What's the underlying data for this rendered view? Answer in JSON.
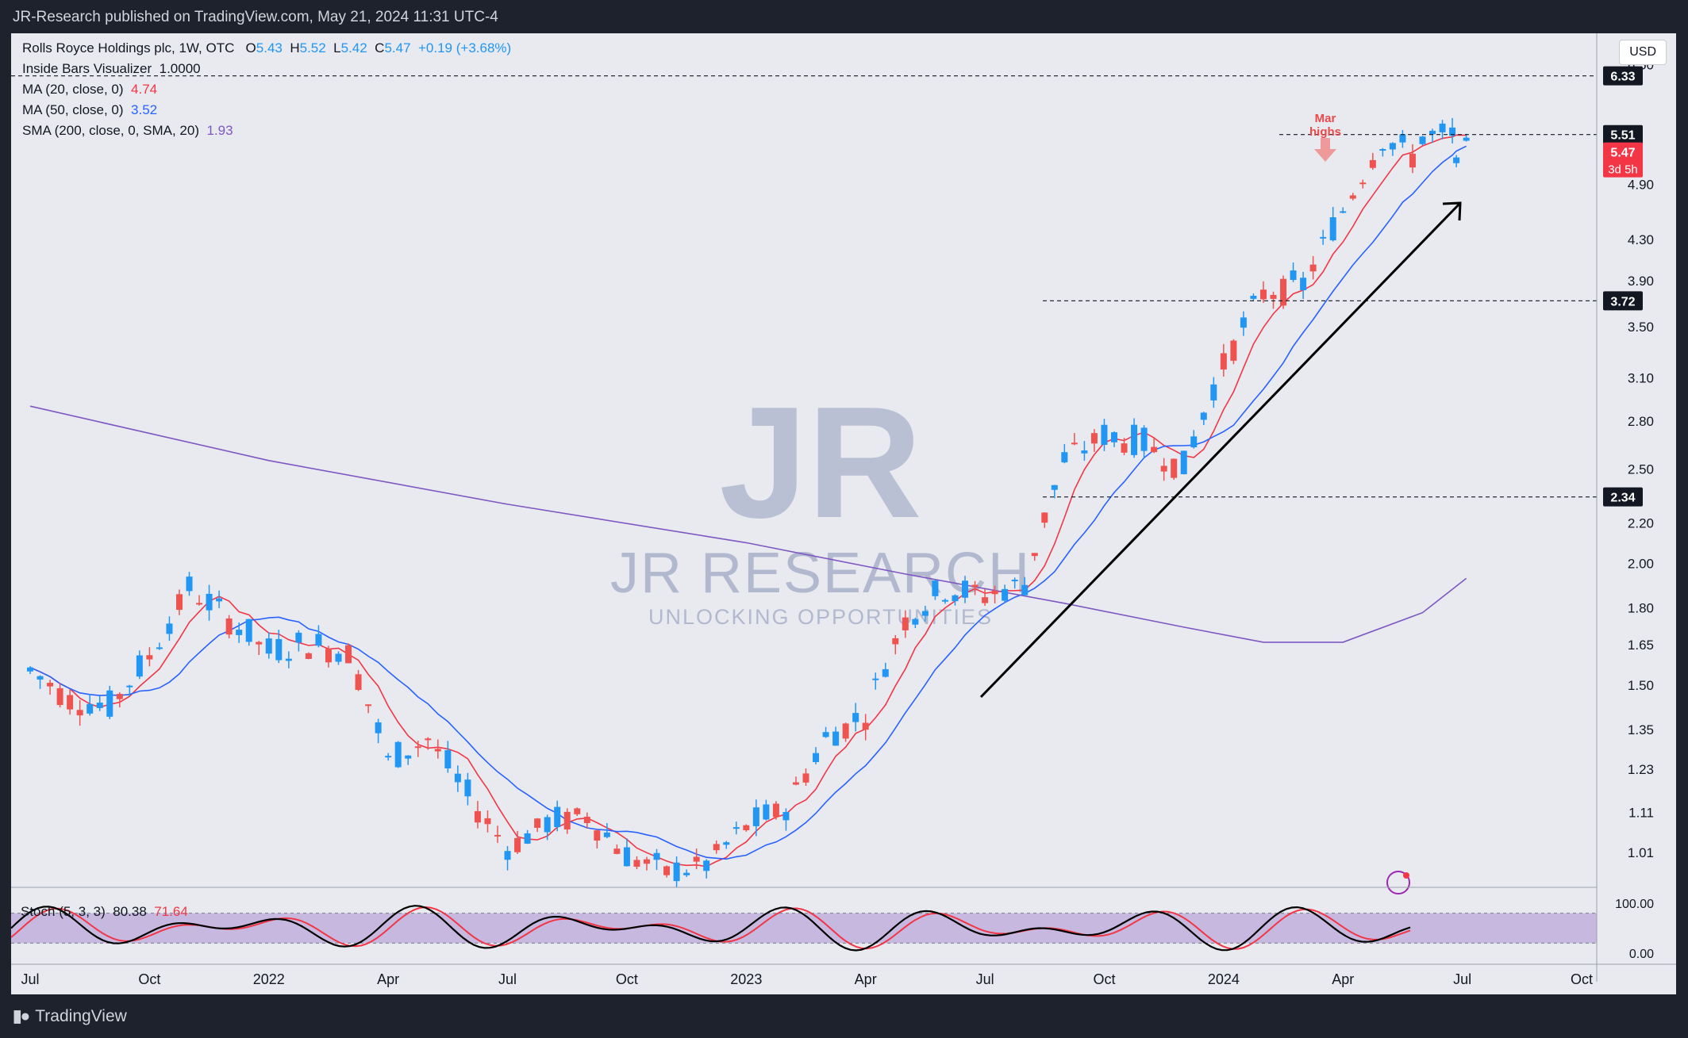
{
  "header": {
    "published": "JR-Research published on TradingView.com, May 21, 2024 11:31 UTC-4"
  },
  "footer": {
    "brand": "TradingView"
  },
  "legend": {
    "symbol": "Rolls Royce Holdings plc, 1W, OTC",
    "o_label": "O",
    "o": "5.43",
    "h_label": "H",
    "h": "5.52",
    "l_label": "L",
    "l": "5.42",
    "c_label": "C",
    "c": "5.47",
    "change": "+0.19 (+3.68%)",
    "inside_bars": "Inside Bars Visualizer",
    "inside_bars_val": "1.0000",
    "ma20": "MA (20, close, 0)",
    "ma20_val": "4.74",
    "ma50": "MA (50, close, 0)",
    "ma50_val": "3.52",
    "sma200": "SMA (200, close, 0, SMA, 20)",
    "sma200_val": "1.93"
  },
  "currency": "USD",
  "stoch": {
    "label": "Stoch (5, 3, 3)",
    "k": "80.38",
    "d": "71.64"
  },
  "annotation": {
    "line1": "Mar",
    "line2": "highs"
  },
  "watermark": {
    "logo": "JR",
    "name": "JR RESEARCH",
    "tagline": "UNLOCKING OPPORTUNITIES"
  },
  "colors": {
    "up": "#2196f3",
    "down": "#ef5350",
    "ma20": "#f23645",
    "ma50": "#2962ff",
    "sma200": "#7e57c2",
    "bg": "#e8eaf0",
    "stoch_band": "#c7b8e0"
  },
  "chart_data": {
    "type": "candlestick",
    "title": "Rolls Royce Holdings plc, 1W, OTC",
    "y_scale": "log",
    "y_ticks": [
      "6.50",
      "4.90",
      "4.30",
      "3.90",
      "3.50",
      "3.10",
      "2.80",
      "2.50",
      "2.20",
      "2.00",
      "1.80",
      "1.65",
      "1.50",
      "1.35",
      "1.23",
      "1.11",
      "1.01"
    ],
    "x_ticks": [
      "Jul",
      "Oct",
      "2022",
      "Apr",
      "Jul",
      "Oct",
      "2023",
      "Apr",
      "Jul",
      "Oct",
      "2024",
      "Apr",
      "Jul",
      "Oct"
    ],
    "price_labels": [
      {
        "value": "6.33",
        "style": "dark"
      },
      {
        "value": "5.51",
        "style": "dark"
      },
      {
        "value": "5.47",
        "sub": "3d 5h",
        "style": "red"
      },
      {
        "value": "3.72",
        "style": "dark"
      },
      {
        "value": "2.34",
        "style": "dark"
      }
    ],
    "levels": [
      6.33,
      5.51,
      3.72,
      2.34
    ],
    "ohlc_weeks_approx": {
      "2021-06": [
        1.55,
        1.57,
        1.48,
        1.5
      ],
      "2021-07": [
        1.45,
        1.48,
        1.22,
        1.28
      ],
      "2021-08": [
        1.42,
        1.62,
        1.4,
        1.58
      ],
      "2021-09": [
        1.6,
        1.98,
        1.55,
        1.95
      ],
      "2021-10": [
        1.88,
        1.98,
        1.78,
        1.82
      ],
      "2021-11": [
        1.75,
        1.8,
        1.57,
        1.62
      ],
      "2021-12": [
        1.62,
        1.72,
        1.42,
        1.6
      ],
      "2022-01": [
        1.65,
        1.68,
        1.58,
        1.63
      ],
      "2022-02": [
        1.62,
        1.65,
        1.43,
        1.5
      ],
      "2022-03": [
        1.25,
        1.55,
        1.17,
        1.4
      ],
      "2022-04": [
        1.32,
        1.38,
        1.15,
        1.2
      ],
      "2022-05": [
        1.15,
        1.18,
        0.98,
        1.05
      ],
      "2022-06": [
        1.02,
        1.12,
        0.98,
        1.08
      ],
      "2022-07": [
        1.08,
        1.14,
        1.04,
        1.1
      ],
      "2022-08": [
        1.1,
        1.12,
        1.0,
        1.04
      ],
      "2022-09": [
        1.0,
        1.03,
        0.94,
        0.96
      ],
      "2022-10": [
        0.96,
        0.98,
        0.93,
        0.95
      ],
      "2022-11": [
        0.98,
        1.1,
        0.96,
        1.07
      ],
      "2022-12": [
        1.07,
        1.12,
        1.01,
        1.03
      ],
      "2023-01": [
        1.12,
        1.35,
        1.1,
        1.32
      ],
      "2023-02": [
        1.32,
        1.35,
        1.25,
        1.3
      ],
      "2023-03": [
        1.4,
        1.75,
        1.38,
        1.7
      ],
      "2023-04": [
        1.75,
        1.88,
        1.72,
        1.85
      ],
      "2023-05": [
        1.88,
        1.95,
        1.8,
        1.9
      ],
      "2023-06": [
        1.85,
        1.92,
        1.75,
        1.82
      ],
      "2023-07": [
        1.9,
        2.6,
        1.85,
        2.55
      ],
      "2023-08": [
        2.55,
        2.7,
        2.45,
        2.62
      ],
      "2023-09": [
        2.7,
        2.85,
        2.55,
        2.72
      ],
      "2023-10": [
        2.65,
        2.72,
        2.36,
        2.45
      ],
      "2023-11": [
        2.5,
        3.0,
        2.45,
        2.95
      ],
      "2023-12": [
        3.2,
        3.85,
        3.15,
        3.75
      ],
      "2024-01": [
        3.78,
        3.92,
        3.72,
        3.85
      ],
      "2024-02": [
        3.85,
        4.4,
        3.8,
        4.35
      ],
      "2024-03": [
        4.6,
        5.51,
        4.55,
        5.45
      ],
      "2024-04": [
        5.45,
        5.5,
        4.85,
        5.05
      ],
      "2024-05": [
        5.15,
        5.52,
        5.1,
        5.47
      ]
    },
    "ma20_last": 4.74,
    "ma50_last": 3.52,
    "sma200_last": 1.93,
    "stoch_range": [
      0,
      100
    ],
    "stoch_ticks": [
      "100.00",
      "0.00"
    ]
  }
}
